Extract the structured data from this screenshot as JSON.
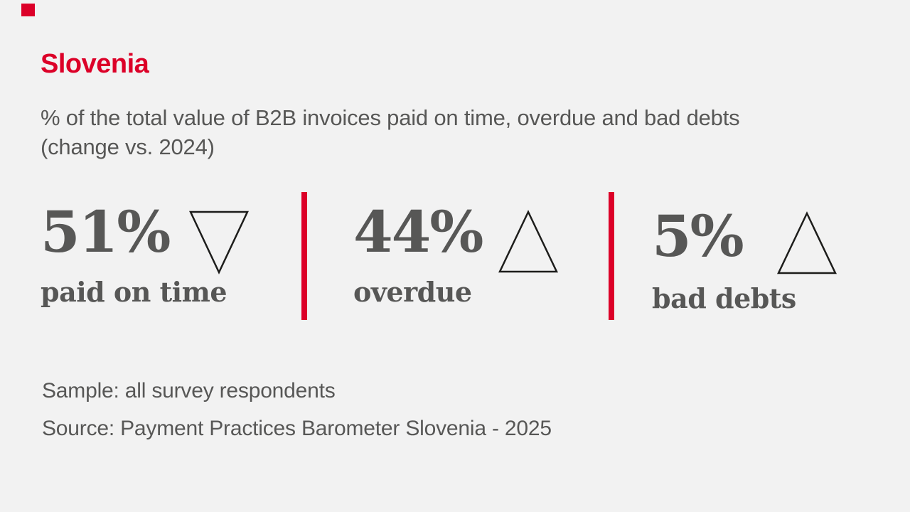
{
  "header": {
    "title": "Slovenia",
    "subtitle_line1": "% of the total value of B2B invoices paid on time, overdue and bad debts",
    "subtitle_line2": "(change vs. 2024)"
  },
  "stats": [
    {
      "value": "51%",
      "label": "paid on time",
      "change_vs_2024": "down"
    },
    {
      "value": "44%",
      "label": "overdue",
      "change_vs_2024": "up"
    },
    {
      "value": "5%",
      "label": "bad debts",
      "change_vs_2024": "up"
    }
  ],
  "footer": {
    "sample": "Sample: all survey respondents",
    "source": "Source: Payment Practices Barometer Slovenia - 2025"
  },
  "colors": {
    "background": "#F2F2F2",
    "accent_red": "#DC0028",
    "text_gray": "#575756",
    "triangle_stroke": "#1D1D1B"
  },
  "chart_data": {
    "type": "table",
    "title": "% of the total value of B2B invoices paid on time, overdue and bad debts (change vs. 2024)",
    "categories": [
      "paid on time",
      "overdue",
      "bad debts"
    ],
    "values": [
      51,
      44,
      5
    ],
    "units": "%",
    "change_vs_2024_direction": [
      "down",
      "up",
      "up"
    ],
    "sample": "all survey respondents",
    "source": "Payment Practices Barometer Slovenia - 2025"
  }
}
